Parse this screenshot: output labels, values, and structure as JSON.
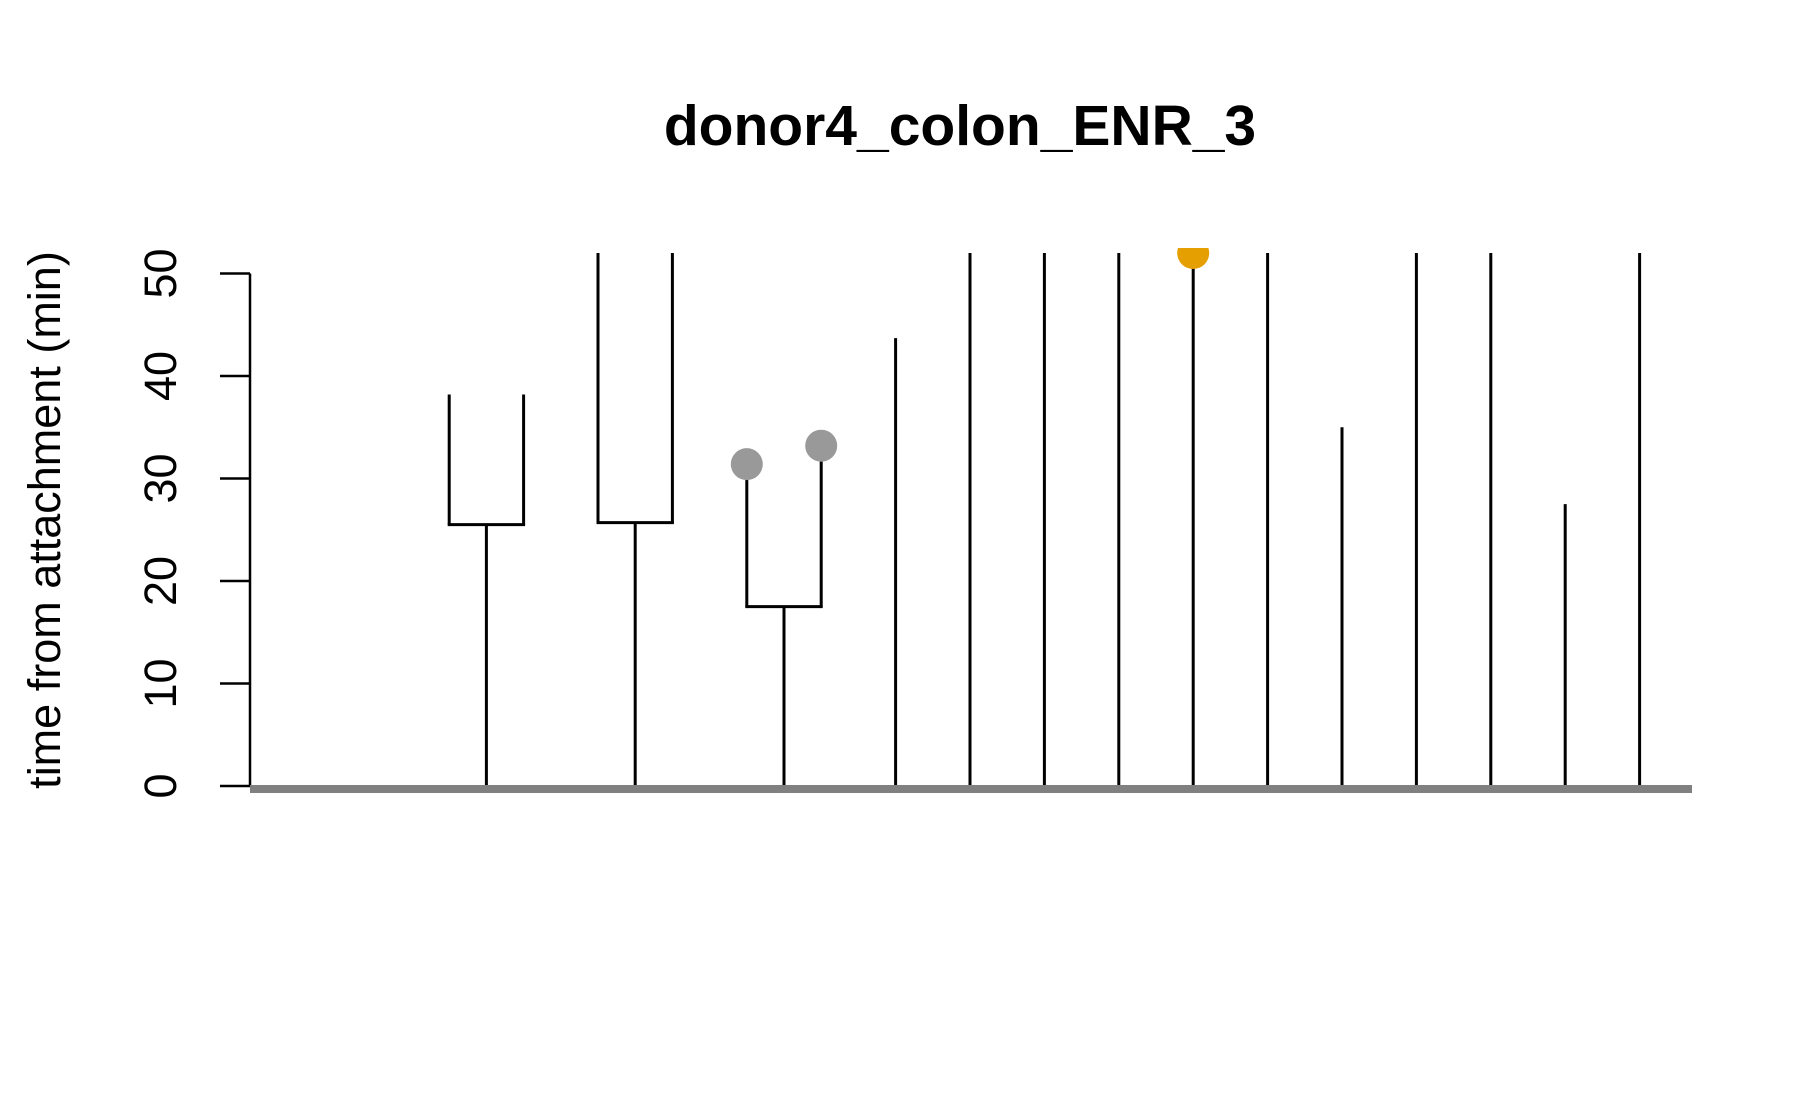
{
  "chart_data": {
    "type": "lineage-tree",
    "title": "donor4_colon_ENR_3",
    "xlabel": "",
    "ylabel": "time from attachment (min)",
    "ylim": [
      0,
      50
    ],
    "y_ticks": [
      "0",
      "10",
      "20",
      "30",
      "40",
      "50"
    ],
    "grid": false,
    "baseline_color": "#808080",
    "line_color": "#000000",
    "endpoint_colors": {
      "gray": "#999999",
      "orange": "#E69F00"
    },
    "lineages": [
      {
        "root_x": 1.0,
        "divide_at": 25.5,
        "children": [
          {
            "x": 0.5,
            "end": 38.2
          },
          {
            "x": 1.5,
            "end": 38.2
          }
        ]
      },
      {
        "root_x": 3.0,
        "divide_at": 25.7,
        "children": [
          {
            "x": 2.5,
            "end": 52.0
          },
          {
            "x": 3.5,
            "end": 52.0
          }
        ]
      },
      {
        "root_x": 5.0,
        "divide_at": 17.5,
        "children": [
          {
            "x": 4.5,
            "end": 31.4,
            "marker": "gray"
          },
          {
            "x": 5.5,
            "end": 33.2,
            "marker": "gray"
          }
        ]
      },
      {
        "root_x": 6.5,
        "end": 43.7
      },
      {
        "root_x": 7.5,
        "end": 52.0
      },
      {
        "root_x": 8.5,
        "end": 52.0
      },
      {
        "root_x": 9.5,
        "end": 52.0
      },
      {
        "root_x": 10.5,
        "end": 52.0,
        "marker": "orange"
      },
      {
        "root_x": 11.5,
        "end": 52.0
      },
      {
        "root_x": 12.5,
        "end": 35.0
      },
      {
        "root_x": 13.5,
        "end": 52.0
      },
      {
        "root_x": 14.5,
        "end": 52.0
      },
      {
        "root_x": 15.5,
        "end": 27.5
      },
      {
        "root_x": 16.5,
        "end": 52.0
      }
    ]
  }
}
